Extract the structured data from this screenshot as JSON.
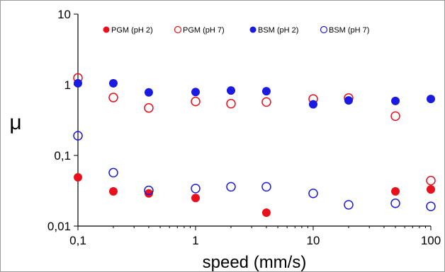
{
  "chart_data": {
    "type": "scatter",
    "xlabel": "speed (mm/s)",
    "ylabel": "μ",
    "x_scale": "log",
    "y_scale": "log",
    "xlim": [
      0.1,
      100
    ],
    "ylim": [
      0.01,
      10
    ],
    "x_ticks": [
      "0,1",
      "1",
      "10",
      "100"
    ],
    "y_ticks": [
      "0,01",
      "0,1",
      "1",
      "10"
    ],
    "grid": false,
    "legend_position": "top",
    "series": [
      {
        "name": "PGM (pH 2)",
        "color": "#e8101a",
        "marker": "filled-circle",
        "points": [
          {
            "x": 0.1,
            "y": 0.049
          },
          {
            "x": 0.2,
            "y": 0.031
          },
          {
            "x": 0.4,
            "y": 0.029
          },
          {
            "x": 1,
            "y": 0.025
          },
          {
            "x": 4,
            "y": 0.0155
          },
          {
            "x": 50,
            "y": 0.031
          },
          {
            "x": 100,
            "y": 0.033
          }
        ]
      },
      {
        "name": "PGM (pH 7)",
        "color": "#e8101a",
        "marker": "open-circle",
        "points": [
          {
            "x": 0.1,
            "y": 1.25
          },
          {
            "x": 0.2,
            "y": 0.66
          },
          {
            "x": 0.4,
            "y": 0.47
          },
          {
            "x": 1,
            "y": 0.58
          },
          {
            "x": 2,
            "y": 0.54
          },
          {
            "x": 4,
            "y": 0.57
          },
          {
            "x": 10,
            "y": 0.63
          },
          {
            "x": 20,
            "y": 0.65
          },
          {
            "x": 50,
            "y": 0.36
          },
          {
            "x": 100,
            "y": 0.044
          }
        ]
      },
      {
        "name": "BSM (pH 2)",
        "color": "#1a1ae0",
        "marker": "filled-circle",
        "points": [
          {
            "x": 0.1,
            "y": 1.05
          },
          {
            "x": 0.2,
            "y": 1.05
          },
          {
            "x": 0.4,
            "y": 0.78
          },
          {
            "x": 1,
            "y": 0.79
          },
          {
            "x": 2,
            "y": 0.83
          },
          {
            "x": 4,
            "y": 0.81
          },
          {
            "x": 10,
            "y": 0.53
          },
          {
            "x": 20,
            "y": 0.6
          },
          {
            "x": 50,
            "y": 0.59
          },
          {
            "x": 100,
            "y": 0.63
          }
        ]
      },
      {
        "name": "BSM (pH 7)",
        "color": "#1a1ae0",
        "marker": "open-circle",
        "points": [
          {
            "x": 0.1,
            "y": 0.19
          },
          {
            "x": 0.2,
            "y": 0.057
          },
          {
            "x": 0.4,
            "y": 0.032
          },
          {
            "x": 1,
            "y": 0.034
          },
          {
            "x": 2,
            "y": 0.036
          },
          {
            "x": 4,
            "y": 0.036
          },
          {
            "x": 10,
            "y": 0.029
          },
          {
            "x": 20,
            "y": 0.02
          },
          {
            "x": 50,
            "y": 0.021
          },
          {
            "x": 100,
            "y": 0.019
          }
        ]
      }
    ]
  }
}
